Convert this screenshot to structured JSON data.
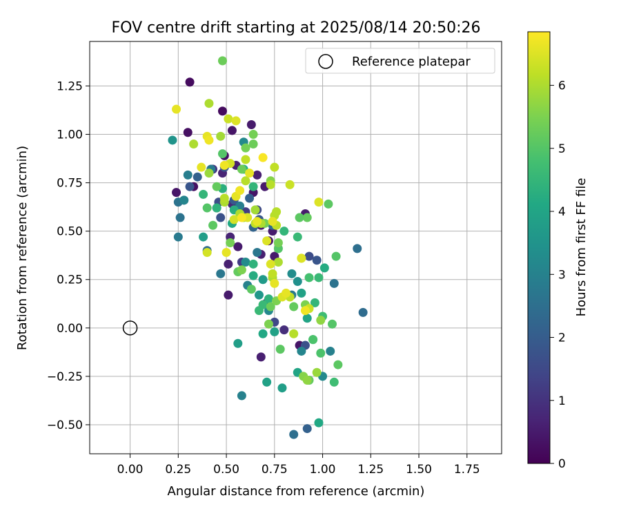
{
  "chart_data": {
    "type": "scatter",
    "title": "FOV centre drift starting at 2025/08/14 20:50:26",
    "xlabel": "Angular distance from reference (arcmin)",
    "ylabel": "Rotation from reference (arcmin)",
    "xlim": [
      -0.21,
      1.93
    ],
    "ylim": [
      -0.65,
      1.48
    ],
    "x_ticks": [
      0.0,
      0.25,
      0.5,
      0.75,
      1.0,
      1.25,
      1.5,
      1.75
    ],
    "x_tick_labels": [
      "0.00",
      "0.25",
      "0.50",
      "0.75",
      "1.00",
      "1.25",
      "1.50",
      "1.75"
    ],
    "y_ticks": [
      -0.5,
      -0.25,
      0.0,
      0.25,
      0.5,
      0.75,
      1.0,
      1.25
    ],
    "y_tick_labels": [
      "−0.50",
      "−0.25",
      "0.00",
      "0.25",
      "0.50",
      "0.75",
      "1.00",
      "1.25"
    ],
    "grid": true,
    "legend": {
      "placement": "top-right",
      "entries": [
        {
          "label": "Reference platepar",
          "marker": "hollow-circle"
        }
      ]
    },
    "reference_point": {
      "x": 0.0,
      "y": 0.0
    },
    "colorbar": {
      "label": "Hours from first FF file",
      "colormap": "viridis",
      "range": [
        0,
        6.85
      ],
      "ticks": [
        0,
        1,
        2,
        3,
        4,
        5,
        6
      ],
      "tick_labels": [
        "0",
        "1",
        "2",
        "3",
        "4",
        "5",
        "6"
      ]
    },
    "points": [
      {
        "x": 0.31,
        "y": 1.27,
        "c": 0.2
      },
      {
        "x": 0.48,
        "y": 1.12,
        "c": 0.2
      },
      {
        "x": 0.3,
        "y": 1.01,
        "c": 0.3
      },
      {
        "x": 0.53,
        "y": 1.02,
        "c": 0.4
      },
      {
        "x": 0.63,
        "y": 1.05,
        "c": 0.5
      },
      {
        "x": 0.49,
        "y": 0.89,
        "c": 0.3
      },
      {
        "x": 0.55,
        "y": 0.84,
        "c": 0.6
      },
      {
        "x": 0.33,
        "y": 0.73,
        "c": 0.3
      },
      {
        "x": 0.24,
        "y": 0.7,
        "c": 0.4
      },
      {
        "x": 0.45,
        "y": 0.62,
        "c": 0.5
      },
      {
        "x": 0.48,
        "y": 0.8,
        "c": 0.7
      },
      {
        "x": 0.53,
        "y": 0.64,
        "c": 0.8
      },
      {
        "x": 0.64,
        "y": 0.7,
        "c": 0.4
      },
      {
        "x": 0.66,
        "y": 0.79,
        "c": 0.6
      },
      {
        "x": 0.7,
        "y": 0.73,
        "c": 0.5
      },
      {
        "x": 0.52,
        "y": 0.47,
        "c": 0.7
      },
      {
        "x": 0.56,
        "y": 0.42,
        "c": 0.5
      },
      {
        "x": 0.51,
        "y": 0.33,
        "c": 0.6
      },
      {
        "x": 0.51,
        "y": 0.17,
        "c": 0.5
      },
      {
        "x": 0.68,
        "y": 0.38,
        "c": 0.6
      },
      {
        "x": 0.72,
        "y": 0.45,
        "c": 0.4
      },
      {
        "x": 0.68,
        "y": 0.53,
        "c": 0.5
      },
      {
        "x": 0.68,
        "y": -0.15,
        "c": 0.6
      },
      {
        "x": 0.75,
        "y": 0.37,
        "c": 0.5
      },
      {
        "x": 0.74,
        "y": 0.5,
        "c": 0.5
      },
      {
        "x": 0.91,
        "y": 0.59,
        "c": 0.5
      },
      {
        "x": 0.8,
        "y": -0.01,
        "c": 0.9
      },
      {
        "x": 0.71,
        "y": 0.13,
        "c": 0.8
      },
      {
        "x": 0.88,
        "y": -0.09,
        "c": 0.4
      },
      {
        "x": 0.43,
        "y": 0.82,
        "c": 1.1
      },
      {
        "x": 0.6,
        "y": 0.6,
        "c": 1.2
      },
      {
        "x": 0.58,
        "y": 0.34,
        "c": 1.2
      },
      {
        "x": 0.46,
        "y": 0.65,
        "c": 1.6
      },
      {
        "x": 0.28,
        "y": 0.66,
        "c": 1.9
      },
      {
        "x": 0.31,
        "y": 0.73,
        "c": 1.8
      },
      {
        "x": 0.35,
        "y": 0.78,
        "c": 2.1
      },
      {
        "x": 0.49,
        "y": 0.83,
        "c": 1.8
      },
      {
        "x": 0.47,
        "y": 0.57,
        "c": 1.7
      },
      {
        "x": 0.54,
        "y": 0.66,
        "c": 1.9
      },
      {
        "x": 0.62,
        "y": 0.67,
        "c": 2.1
      },
      {
        "x": 0.67,
        "y": 0.56,
        "c": 1.9
      },
      {
        "x": 0.64,
        "y": 0.52,
        "c": 2.2
      },
      {
        "x": 0.66,
        "y": 0.61,
        "c": 1.5
      },
      {
        "x": 0.74,
        "y": 0.53,
        "c": 2.4
      },
      {
        "x": 0.75,
        "y": 0.03,
        "c": 1.5
      },
      {
        "x": 0.93,
        "y": 0.37,
        "c": 1.6
      },
      {
        "x": 0.97,
        "y": 0.35,
        "c": 1.8
      },
      {
        "x": 0.91,
        "y": -0.09,
        "c": 1.7
      },
      {
        "x": 0.92,
        "y": -0.52,
        "c": 2.1
      },
      {
        "x": 0.85,
        "y": -0.55,
        "c": 2.5
      },
      {
        "x": 1.21,
        "y": 0.08,
        "c": 2.4
      },
      {
        "x": 1.18,
        "y": 0.41,
        "c": 2.5
      },
      {
        "x": 1.06,
        "y": 0.23,
        "c": 2.6
      },
      {
        "x": 0.25,
        "y": 0.65,
        "c": 2.6
      },
      {
        "x": 0.26,
        "y": 0.57,
        "c": 2.6
      },
      {
        "x": 0.25,
        "y": 0.47,
        "c": 2.8
      },
      {
        "x": 0.3,
        "y": 0.79,
        "c": 2.9
      },
      {
        "x": 0.28,
        "y": 0.66,
        "c": 3.1
      },
      {
        "x": 0.4,
        "y": 0.4,
        "c": 2.4
      },
      {
        "x": 0.47,
        "y": 0.28,
        "c": 2.7
      },
      {
        "x": 0.42,
        "y": 0.82,
        "c": 2.8
      },
      {
        "x": 0.57,
        "y": 0.63,
        "c": 2.9
      },
      {
        "x": 0.59,
        "y": 0.96,
        "c": 3.2
      },
      {
        "x": 0.66,
        "y": 0.39,
        "c": 2.7
      },
      {
        "x": 0.61,
        "y": 0.22,
        "c": 3.0
      },
      {
        "x": 0.6,
        "y": 0.34,
        "c": 3.3
      },
      {
        "x": 0.58,
        "y": -0.35,
        "c": 3.0
      },
      {
        "x": 0.72,
        "y": 0.09,
        "c": 3.2
      },
      {
        "x": 0.84,
        "y": 0.28,
        "c": 3.3
      },
      {
        "x": 0.84,
        "y": 0.17,
        "c": 2.8
      },
      {
        "x": 0.87,
        "y": 0.24,
        "c": 3.4
      },
      {
        "x": 0.89,
        "y": -0.12,
        "c": 3.1
      },
      {
        "x": 1.04,
        "y": -0.12,
        "c": 3.0
      },
      {
        "x": 1.0,
        "y": -0.25,
        "c": 3.2
      },
      {
        "x": 0.22,
        "y": 0.97,
        "c": 3.5
      },
      {
        "x": 0.38,
        "y": 0.47,
        "c": 3.8
      },
      {
        "x": 0.56,
        "y": -0.08,
        "c": 3.8
      },
      {
        "x": 0.67,
        "y": 0.17,
        "c": 3.6
      },
      {
        "x": 0.71,
        "y": -0.28,
        "c": 3.9
      },
      {
        "x": 0.79,
        "y": -0.31,
        "c": 3.8
      },
      {
        "x": 0.69,
        "y": 0.25,
        "c": 3.7
      },
      {
        "x": 0.75,
        "y": -0.02,
        "c": 3.9
      },
      {
        "x": 0.69,
        "y": -0.03,
        "c": 4.1
      },
      {
        "x": 0.87,
        "y": -0.23,
        "c": 4.0
      },
      {
        "x": 0.89,
        "y": 0.18,
        "c": 3.9
      },
      {
        "x": 0.95,
        "y": -0.06,
        "c": 3.9
      },
      {
        "x": 0.92,
        "y": 0.05,
        "c": 4.0
      },
      {
        "x": 0.98,
        "y": -0.49,
        "c": 4.1
      },
      {
        "x": 1.01,
        "y": 0.31,
        "c": 4.2
      },
      {
        "x": 0.64,
        "y": 0.27,
        "c": 4.2
      },
      {
        "x": 0.53,
        "y": 0.54,
        "c": 4.1
      },
      {
        "x": 0.54,
        "y": 0.61,
        "c": 4.3
      },
      {
        "x": 0.48,
        "y": 0.72,
        "c": 4.3
      },
      {
        "x": 0.38,
        "y": 0.69,
        "c": 4.5
      },
      {
        "x": 0.45,
        "y": 0.62,
        "c": 4.4
      },
      {
        "x": 0.59,
        "y": 0.82,
        "c": 4.3
      },
      {
        "x": 0.64,
        "y": 0.73,
        "c": 4.5
      },
      {
        "x": 0.64,
        "y": 0.33,
        "c": 4.4
      },
      {
        "x": 0.72,
        "y": 0.15,
        "c": 4.4
      },
      {
        "x": 0.67,
        "y": 0.09,
        "c": 4.6
      },
      {
        "x": 0.69,
        "y": 0.12,
        "c": 4.6
      },
      {
        "x": 0.8,
        "y": 0.5,
        "c": 4.5
      },
      {
        "x": 0.87,
        "y": 0.47,
        "c": 4.6
      },
      {
        "x": 0.96,
        "y": 0.13,
        "c": 4.5
      },
      {
        "x": 0.93,
        "y": 0.26,
        "c": 4.8
      },
      {
        "x": 0.98,
        "y": 0.26,
        "c": 4.6
      },
      {
        "x": 0.99,
        "y": -0.13,
        "c": 4.9
      },
      {
        "x": 1.0,
        "y": 0.06,
        "c": 4.7
      },
      {
        "x": 1.06,
        "y": -0.28,
        "c": 4.7
      },
      {
        "x": 1.07,
        "y": 0.37,
        "c": 5.0
      },
      {
        "x": 1.03,
        "y": 0.64,
        "c": 5.1
      },
      {
        "x": 1.08,
        "y": -0.19,
        "c": 5.1
      },
      {
        "x": 0.92,
        "y": 0.57,
        "c": 5.2
      },
      {
        "x": 0.88,
        "y": 0.57,
        "c": 5.1
      },
      {
        "x": 0.95,
        "y": -0.06,
        "c": 4.9
      },
      {
        "x": 0.93,
        "y": -0.27,
        "c": 5.2
      },
      {
        "x": 1.05,
        "y": 0.02,
        "c": 5.0
      },
      {
        "x": 0.48,
        "y": 1.38,
        "c": 5.3
      },
      {
        "x": 0.4,
        "y": 0.62,
        "c": 5.0
      },
      {
        "x": 0.43,
        "y": 0.53,
        "c": 5.1
      },
      {
        "x": 0.45,
        "y": 0.73,
        "c": 5.2
      },
      {
        "x": 0.48,
        "y": 0.9,
        "c": 5.0
      },
      {
        "x": 0.58,
        "y": 0.82,
        "c": 5.3
      },
      {
        "x": 0.52,
        "y": 0.44,
        "c": 5.4
      },
      {
        "x": 0.56,
        "y": 0.29,
        "c": 5.2
      },
      {
        "x": 0.58,
        "y": 0.3,
        "c": 5.5
      },
      {
        "x": 0.63,
        "y": 0.2,
        "c": 5.1
      },
      {
        "x": 0.64,
        "y": 0.95,
        "c": 5.3
      },
      {
        "x": 0.64,
        "y": 1.0,
        "c": 5.4
      },
      {
        "x": 0.6,
        "y": 0.93,
        "c": 5.4
      },
      {
        "x": 0.7,
        "y": 0.54,
        "c": 5.4
      },
      {
        "x": 0.72,
        "y": 0.02,
        "c": 5.5
      },
      {
        "x": 0.73,
        "y": 0.76,
        "c": 5.6
      },
      {
        "x": 0.73,
        "y": 0.11,
        "c": 5.3
      },
      {
        "x": 0.76,
        "y": 0.14,
        "c": 5.5
      },
      {
        "x": 0.78,
        "y": -0.11,
        "c": 5.1
      },
      {
        "x": 0.77,
        "y": 0.41,
        "c": 5.0
      },
      {
        "x": 0.77,
        "y": 0.44,
        "c": 5.4
      },
      {
        "x": 0.85,
        "y": 0.11,
        "c": 5.2
      },
      {
        "x": 0.91,
        "y": 0.12,
        "c": 5.5
      },
      {
        "x": 0.9,
        "y": -0.25,
        "c": 5.6
      },
      {
        "x": 0.97,
        "y": -0.23,
        "c": 5.8
      },
      {
        "x": 0.92,
        "y": -0.27,
        "c": 5.7
      },
      {
        "x": 0.99,
        "y": 0.04,
        "c": 5.7
      },
      {
        "x": 0.41,
        "y": 0.8,
        "c": 5.8
      },
      {
        "x": 0.47,
        "y": 0.99,
        "c": 5.9
      },
      {
        "x": 0.41,
        "y": 1.16,
        "c": 6.0
      },
      {
        "x": 0.33,
        "y": 0.95,
        "c": 6.0
      },
      {
        "x": 0.49,
        "y": 0.65,
        "c": 6.0
      },
      {
        "x": 0.49,
        "y": 0.67,
        "c": 6.1
      },
      {
        "x": 0.57,
        "y": 0.59,
        "c": 6.0
      },
      {
        "x": 0.6,
        "y": 0.76,
        "c": 6.1
      },
      {
        "x": 0.6,
        "y": 0.87,
        "c": 6.2
      },
      {
        "x": 0.59,
        "y": 0.57,
        "c": 5.9
      },
      {
        "x": 0.65,
        "y": 0.61,
        "c": 5.9
      },
      {
        "x": 0.65,
        "y": 0.54,
        "c": 6.2
      },
      {
        "x": 0.68,
        "y": 0.54,
        "c": 6.0
      },
      {
        "x": 0.73,
        "y": 0.74,
        "c": 6.1
      },
      {
        "x": 0.74,
        "y": 0.26,
        "c": 6.0
      },
      {
        "x": 0.74,
        "y": 0.28,
        "c": 6.2
      },
      {
        "x": 0.75,
        "y": 0.58,
        "c": 6.1
      },
      {
        "x": 0.76,
        "y": 0.53,
        "c": 6.2
      },
      {
        "x": 0.75,
        "y": 0.83,
        "c": 6.2
      },
      {
        "x": 0.76,
        "y": 0.6,
        "c": 6.1
      },
      {
        "x": 0.77,
        "y": 0.34,
        "c": 6.0
      },
      {
        "x": 0.83,
        "y": 0.16,
        "c": 6.2
      },
      {
        "x": 0.85,
        "y": -0.03,
        "c": 6.1
      },
      {
        "x": 0.83,
        "y": 0.74,
        "c": 6.3
      },
      {
        "x": 0.89,
        "y": 0.36,
        "c": 6.2
      },
      {
        "x": 0.93,
        "y": 0.1,
        "c": 6.3
      },
      {
        "x": 0.51,
        "y": 1.08,
        "c": 6.3
      },
      {
        "x": 0.52,
        "y": 0.85,
        "c": 6.4
      },
      {
        "x": 0.55,
        "y": 1.07,
        "c": 6.5
      },
      {
        "x": 0.54,
        "y": 0.56,
        "c": 6.4
      },
      {
        "x": 0.55,
        "y": 0.68,
        "c": 6.6
      },
      {
        "x": 0.61,
        "y": 0.57,
        "c": 6.5
      },
      {
        "x": 0.66,
        "y": 0.55,
        "c": 6.6
      },
      {
        "x": 0.71,
        "y": 0.45,
        "c": 6.5
      },
      {
        "x": 0.74,
        "y": 0.55,
        "c": 6.6
      },
      {
        "x": 0.73,
        "y": 0.33,
        "c": 6.5
      },
      {
        "x": 0.75,
        "y": 0.23,
        "c": 6.6
      },
      {
        "x": 0.79,
        "y": 0.16,
        "c": 6.5
      },
      {
        "x": 0.81,
        "y": 0.18,
        "c": 6.6
      },
      {
        "x": 0.89,
        "y": 0.36,
        "c": 6.5
      },
      {
        "x": 0.91,
        "y": 0.09,
        "c": 6.7
      },
      {
        "x": 0.98,
        "y": 0.65,
        "c": 6.5
      },
      {
        "x": 0.4,
        "y": 0.39,
        "c": 6.4
      },
      {
        "x": 0.24,
        "y": 1.13,
        "c": 6.6
      },
      {
        "x": 0.4,
        "y": 0.99,
        "c": 6.6
      },
      {
        "x": 0.41,
        "y": 0.97,
        "c": 6.7
      },
      {
        "x": 0.37,
        "y": 0.83,
        "c": 6.6
      },
      {
        "x": 0.5,
        "y": 0.39,
        "c": 6.6
      },
      {
        "x": 0.49,
        "y": 0.84,
        "c": 6.7
      },
      {
        "x": 0.62,
        "y": 0.8,
        "c": 6.6
      },
      {
        "x": 0.69,
        "y": 0.88,
        "c": 6.8
      },
      {
        "x": 0.57,
        "y": 0.71,
        "c": 6.7
      },
      {
        "x": 0.58,
        "y": 0.57,
        "c": 6.8
      }
    ]
  }
}
